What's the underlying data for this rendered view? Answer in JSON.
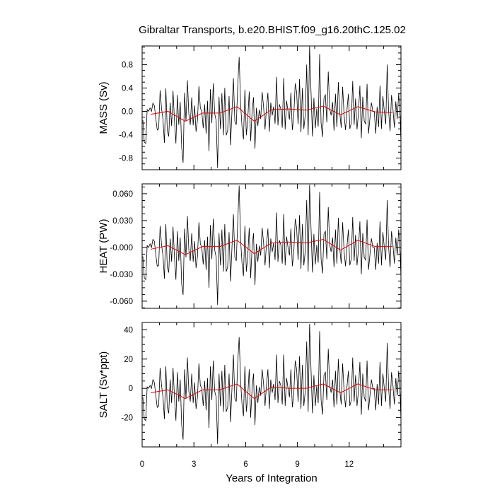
{
  "figure": {
    "title": "Gibraltar Transports, b.e20.BHIST.f09_g16.20thC.125.02",
    "xlabel": "Years of Integration"
  },
  "colors": {
    "monthly_line": "#000000",
    "annual_mean_line": "#e00000"
  },
  "chart_data": [
    {
      "type": "line",
      "ylabel": "MASS (Sv)",
      "xlim": [
        0,
        15
      ],
      "ylim": [
        -1.0,
        1.12
      ],
      "xticks": [
        0,
        3,
        6,
        9,
        12
      ],
      "yticks": [
        0.8,
        0.4,
        0.0,
        -0.4,
        -0.8
      ],
      "ytick_labels": [
        "0.8",
        "0.4",
        "0.0",
        "-0.4",
        "-0.8"
      ],
      "series": [
        {
          "role": "monthly",
          "x_start": 0.0417,
          "x_step": 0.0833,
          "y": [
            -0.15,
            -0.53,
            -0.55,
            0.03,
            0.0,
            0.06,
            0.0,
            0.14,
            0.1,
            -0.12,
            -0.32,
            -0.3,
            0.36,
            0.05,
            -0.14,
            -0.54,
            0.39,
            -0.33,
            -0.43,
            0.15,
            -0.25,
            0.35,
            -0.16,
            -0.55,
            0.28,
            -0.23,
            0.16,
            -0.62,
            -0.88,
            0.32,
            -0.17,
            0.53,
            -0.05,
            -0.23,
            0.24,
            -0.24,
            0.1,
            -0.35,
            -0.15,
            0.43,
            0.06,
            0.0,
            -0.29,
            0.12,
            -0.38,
            0.18,
            -0.68,
            0.38,
            -0.2,
            0.48,
            -0.04,
            -0.16,
            -0.97,
            0.25,
            -0.3,
            0.31,
            -0.41,
            0.4,
            -0.41,
            -0.33,
            0.26,
            -0.58,
            0.0,
            0.57,
            -0.17,
            -0.23,
            0.42,
            0.93,
            0.13,
            -0.27,
            -0.48,
            0.37,
            -0.41,
            -0.13,
            0.34,
            -0.51,
            0.0,
            0.24,
            -0.64,
            0.06,
            -0.25,
            0.03,
            -0.13,
            0.33,
            0.08,
            -0.31,
            0.05,
            0.32,
            -0.35,
            0.15,
            -0.07,
            0.08,
            -0.21,
            0.59,
            -0.24,
            0.12,
            0.04,
            -0.28,
            0.57,
            -0.31,
            0.18,
            0.0,
            -0.14,
            0.32,
            -0.32,
            -0.09,
            0.48,
            0.33,
            -0.22,
            0.55,
            -0.36,
            0.4,
            -0.3,
            -0.06,
            0.8,
            -0.41,
            1.12,
            0.34,
            -0.43,
            0.23,
            -0.29,
            0.05,
            -0.26,
            0.98,
            -0.2,
            -0.44,
            0.23,
            0.28,
            -0.19,
            0.68,
            0.04,
            -0.07,
            0.16,
            -0.33,
            0.3,
            -0.27,
            0.5,
            -0.02,
            -0.28,
            0.42,
            -0.06,
            -0.32,
            0.02,
            0.3,
            -0.3,
            -0.2,
            0.52,
            -0.23,
            0.22,
            -0.31,
            -0.04,
            0.44,
            -0.46,
            0.25,
            -0.16,
            -0.22,
            0.47,
            -0.38,
            -0.12,
            0.15,
            0.0,
            0.0,
            -0.38,
            0.08,
            -0.27,
            0.44,
            -0.3,
            0.26,
            0.0,
            -0.22,
            0.8,
            0.0,
            -0.34,
            0.28,
            0.04,
            -0.28,
            0.17,
            -0.13,
            0.31,
            -0.09,
            -0.89,
            0.36,
            0.04,
            -0.37,
            0.21,
            -0.14,
            0.06,
            -0.2,
            0.23,
            -0.1,
            0.2,
            -0.21,
            0.21,
            0.04,
            0.17,
            0.14
          ]
        },
        {
          "role": "annual_mean",
          "x": [
            0.5,
            1.5,
            2.5,
            3.5,
            4.5,
            5.5,
            6.5,
            7.5,
            8.5,
            9.5,
            10.5,
            11.5,
            12.5,
            13.5,
            14.5
          ],
          "y": [
            -0.05,
            0.0,
            -0.17,
            -0.03,
            -0.03,
            0.08,
            -0.17,
            0.03,
            0.04,
            0.02,
            0.09,
            -0.06,
            0.08,
            -0.01,
            -0.02
          ]
        }
      ]
    },
    {
      "type": "line",
      "ylabel": "HEAT (PW)",
      "xlim": [
        0,
        15
      ],
      "ylim": [
        -0.068,
        0.071
      ],
      "xticks": [
        0,
        3,
        6,
        9,
        12
      ],
      "yticks": [
        0.06,
        0.03,
        0.0,
        -0.03,
        -0.06
      ],
      "ytick_labels": [
        "0.060",
        "0.030",
        "-0.000",
        "-0.030",
        "-0.060"
      ],
      "series": [
        {
          "role": "monthly",
          "x_start": 0.0417,
          "x_step": 0.0833,
          "y": [
            -0.01,
            -0.034,
            -0.036,
            0.002,
            0.0,
            0.004,
            0.0,
            0.009,
            0.007,
            -0.008,
            -0.021,
            -0.02,
            0.024,
            0.003,
            -0.009,
            -0.035,
            0.026,
            -0.022,
            -0.028,
            0.01,
            -0.016,
            0.023,
            -0.011,
            -0.036,
            0.018,
            -0.015,
            0.011,
            -0.041,
            -0.053,
            0.021,
            -0.011,
            0.035,
            -0.003,
            -0.015,
            0.016,
            -0.016,
            0.007,
            -0.023,
            -0.01,
            0.028,
            0.004,
            0.0,
            -0.019,
            0.008,
            -0.025,
            0.012,
            -0.045,
            0.025,
            -0.013,
            0.032,
            -0.003,
            -0.011,
            -0.064,
            0.016,
            -0.02,
            0.02,
            -0.027,
            0.026,
            -0.027,
            -0.022,
            0.017,
            -0.038,
            0.0,
            0.037,
            -0.011,
            -0.015,
            0.028,
            0.069,
            0.009,
            -0.018,
            -0.032,
            0.024,
            -0.027,
            -0.009,
            0.022,
            -0.034,
            0.0,
            0.016,
            -0.042,
            0.004,
            -0.016,
            0.002,
            -0.009,
            0.022,
            0.005,
            -0.02,
            0.003,
            0.021,
            -0.023,
            0.01,
            -0.005,
            0.005,
            -0.014,
            0.039,
            -0.016,
            0.008,
            0.003,
            -0.018,
            0.037,
            -0.02,
            0.012,
            0.0,
            -0.009,
            0.021,
            -0.021,
            -0.006,
            0.032,
            0.022,
            -0.014,
            0.036,
            -0.024,
            0.026,
            -0.02,
            -0.004,
            0.053,
            -0.027,
            0.07,
            0.022,
            -0.028,
            0.015,
            -0.019,
            0.003,
            -0.017,
            0.062,
            -0.013,
            -0.029,
            0.015,
            0.018,
            -0.013,
            0.045,
            0.003,
            -0.005,
            0.011,
            -0.022,
            0.02,
            -0.018,
            0.033,
            -0.001,
            -0.018,
            0.028,
            -0.004,
            -0.021,
            0.001,
            0.02,
            -0.02,
            -0.013,
            0.034,
            -0.015,
            0.014,
            -0.02,
            -0.003,
            0.029,
            -0.03,
            0.016,
            -0.011,
            -0.014,
            0.031,
            -0.025,
            -0.008,
            0.01,
            0.0,
            0.0,
            -0.025,
            0.005,
            -0.018,
            0.029,
            -0.02,
            0.017,
            0.0,
            -0.014,
            0.053,
            0.0,
            -0.022,
            0.018,
            0.003,
            -0.018,
            0.011,
            -0.009,
            0.02,
            -0.006,
            -0.055,
            0.024,
            0.003,
            -0.024,
            0.014,
            -0.009,
            0.004,
            -0.013,
            0.015,
            -0.007,
            0.013,
            -0.014,
            0.014,
            0.003,
            0.011,
            0.009
          ]
        },
        {
          "role": "annual_mean",
          "x": [
            0.5,
            1.5,
            2.5,
            3.5,
            4.5,
            5.5,
            6.5,
            7.5,
            8.5,
            9.5,
            10.5,
            11.5,
            12.5,
            13.5,
            14.5
          ],
          "y": [
            -0.002,
            0.002,
            -0.008,
            0.001,
            0.001,
            0.008,
            -0.007,
            0.005,
            0.006,
            0.005,
            0.009,
            -0.003,
            0.008,
            0.001,
            0.001
          ]
        }
      ]
    },
    {
      "type": "line",
      "ylabel": "SALT (Sv*ppt)",
      "xlim": [
        0,
        15
      ],
      "ylim": [
        -40,
        45
      ],
      "xticks": [
        0,
        3,
        6,
        9,
        12
      ],
      "xtick_labels": [
        "0",
        "3",
        "6",
        "9",
        "12"
      ],
      "yticks": [
        40,
        20,
        0,
        -20
      ],
      "ytick_labels": [
        "40",
        "20",
        "0",
        "-20"
      ],
      "series": [
        {
          "role": "monthly",
          "x_start": 0.0417,
          "x_step": 0.0833,
          "y": [
            -6,
            -21,
            -22,
            1,
            0,
            2,
            0,
            6,
            4,
            -5,
            -13,
            -12,
            14,
            2,
            -6,
            -21,
            15,
            -13,
            -17,
            6,
            -10,
            14,
            -6,
            -22,
            11,
            -9,
            6,
            -25,
            -35,
            13,
            -7,
            21,
            -2,
            -9,
            10,
            -10,
            4,
            -14,
            -6,
            17,
            2,
            0,
            -12,
            5,
            -15,
            7,
            -27,
            15,
            -8,
            19,
            -2,
            -6,
            -38,
            10,
            -12,
            12,
            -16,
            16,
            -16,
            -13,
            10,
            -23,
            0,
            23,
            -7,
            -9,
            17,
            35,
            5,
            -11,
            -19,
            15,
            -16,
            -5,
            13,
            -20,
            0,
            10,
            -25,
            2,
            -10,
            1,
            -5,
            13,
            3,
            -12,
            2,
            13,
            -14,
            6,
            -3,
            3,
            -8,
            23,
            -10,
            5,
            2,
            -11,
            23,
            -12,
            7,
            0,
            -6,
            13,
            -13,
            -4,
            19,
            13,
            -9,
            22,
            -14,
            16,
            -12,
            -2,
            32,
            -16,
            44,
            13,
            -17,
            9,
            -12,
            2,
            -10,
            39,
            -8,
            -18,
            9,
            11,
            -8,
            27,
            2,
            -3,
            6,
            -13,
            12,
            -11,
            20,
            -1,
            -11,
            17,
            -2,
            -13,
            1,
            12,
            -12,
            -8,
            21,
            -9,
            9,
            -12,
            -2,
            18,
            -18,
            10,
            -6,
            -9,
            19,
            -15,
            -5,
            6,
            0,
            0,
            -15,
            3,
            -11,
            18,
            -12,
            10,
            0,
            -9,
            31,
            0,
            -14,
            11,
            2,
            -11,
            7,
            -5,
            12,
            -4,
            -35,
            14,
            2,
            -15,
            8,
            -6,
            2,
            -8,
            9,
            -4,
            8,
            -8,
            8,
            2,
            7,
            6
          ]
        },
        {
          "role": "annual_mean",
          "x": [
            0.5,
            1.5,
            2.5,
            3.5,
            4.5,
            5.5,
            6.5,
            7.5,
            8.5,
            9.5,
            10.5,
            11.5,
            12.5,
            13.5,
            14.5
          ],
          "y": [
            -3,
            -1,
            -7,
            -1,
            -1,
            3,
            -7,
            1,
            0,
            0,
            3,
            -3,
            3,
            -1,
            -1
          ]
        }
      ]
    }
  ]
}
